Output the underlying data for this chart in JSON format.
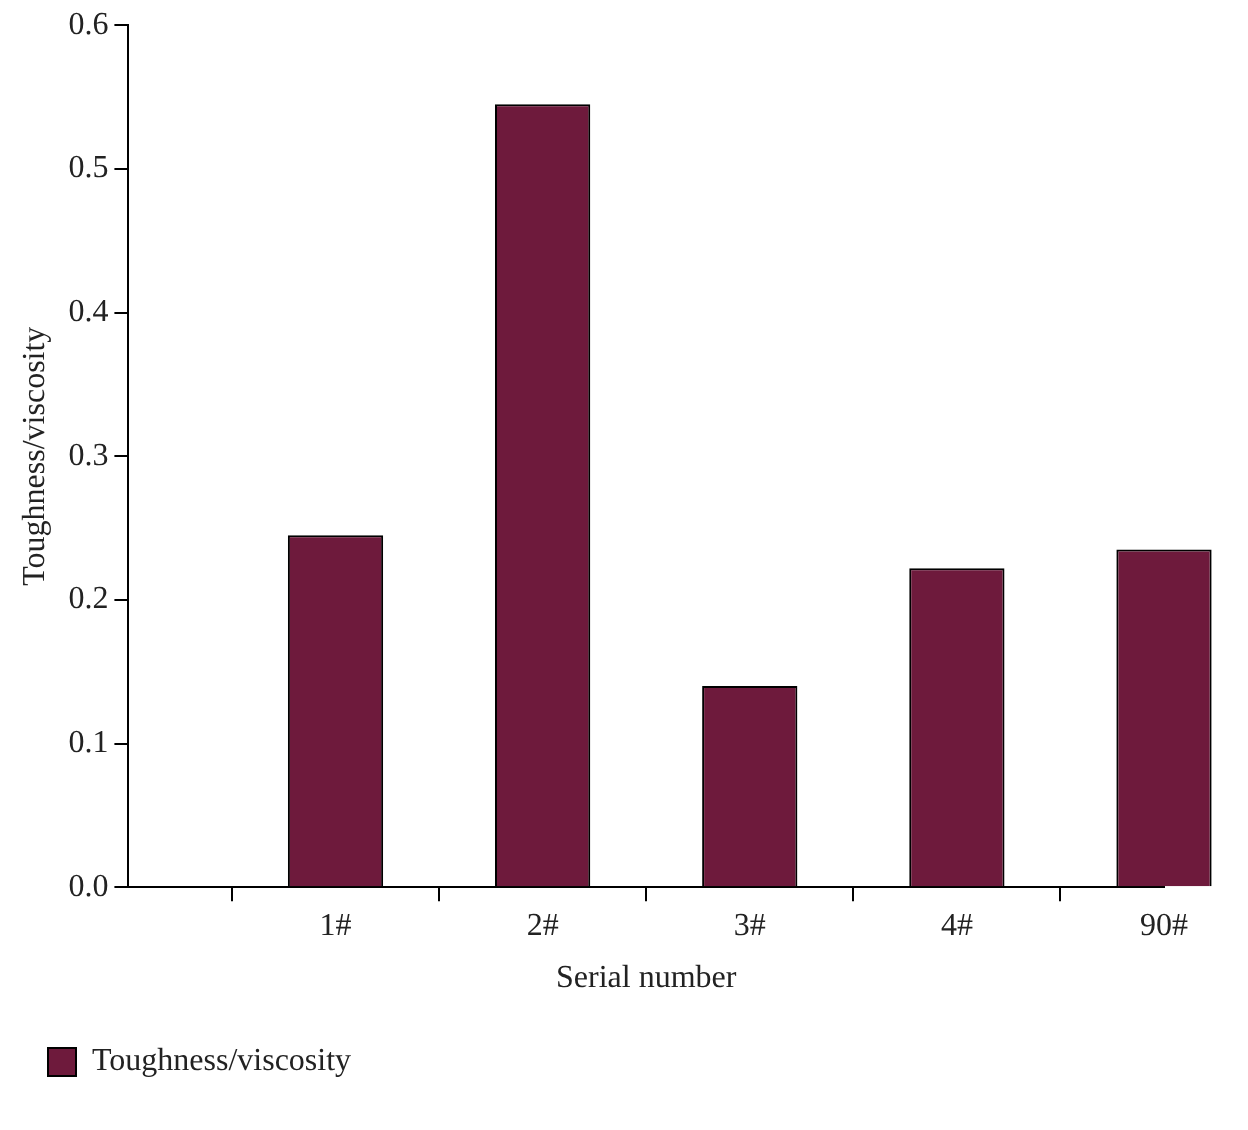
{
  "chart_data": {
    "type": "bar",
    "xlabel": "Serial number",
    "ylabel": "Toughness/viscosity",
    "categories": [
      null,
      "1#",
      "2#",
      "3#",
      "4#",
      "90#"
    ],
    "series": [
      {
        "name": "Toughness/viscosity",
        "color": "#6e1a3c",
        "values": [
          null,
          0.245,
          0.545,
          0.14,
          0.222,
          0.235
        ]
      }
    ],
    "ylim": [
      0,
      0.6
    ],
    "yticks": [
      {
        "value": 0,
        "label": "0.0"
      },
      {
        "value": 0.1,
        "label": "0.1"
      },
      {
        "value": 0.2,
        "label": "0.2"
      },
      {
        "value": 0.3,
        "label": "0.3"
      },
      {
        "value": 0.4,
        "label": "0.4"
      },
      {
        "value": 0.5,
        "label": "0.5"
      },
      {
        "value": 0.6,
        "label": "0.6"
      }
    ],
    "grid": false,
    "legend": "bottom left"
  }
}
